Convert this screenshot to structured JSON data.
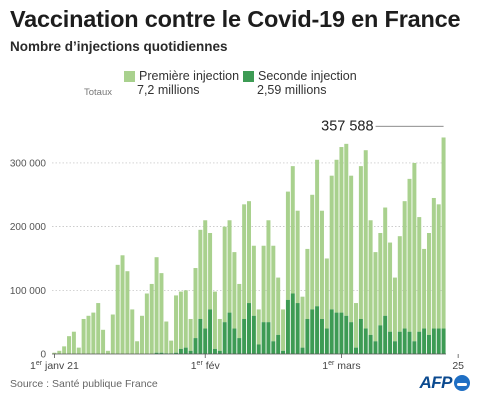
{
  "chart_data": {
    "type": "bar",
    "title": "Vaccination contre le Covid-19 en France",
    "subtitle": "Nombre d’injections quotidiennes",
    "stacked": true,
    "series": [
      {
        "name": "Première injection",
        "color": "#a9d18e",
        "total": "7,2 millions",
        "values": [
          2000,
          5000,
          12000,
          28000,
          35000,
          10000,
          55000,
          60000,
          65000,
          80000,
          38000,
          5000,
          62000,
          140000,
          155000,
          130000,
          70000,
          20000,
          60000,
          95000,
          110000,
          150000,
          125000,
          50000,
          20000,
          90000,
          90000,
          90000,
          50000,
          110000,
          140000,
          170000,
          120000,
          90000,
          50000,
          150000,
          145000,
          120000,
          85000,
          180000,
          160000,
          110000,
          55000,
          120000,
          160000,
          150000,
          90000,
          65000,
          170000,
          200000,
          145000,
          80000,
          110000,
          180000,
          230000,
          170000,
          110000,
          210000,
          240000,
          260000,
          270000,
          230000,
          70000,
          240000,
          280000,
          180000,
          140000,
          145000,
          170000,
          140000,
          100000,
          150000,
          200000,
          240000,
          280000,
          180000,
          125000,
          160000,
          205000,
          195000,
          300000
        ]
      },
      {
        "name": "Seconde injection",
        "color": "#3d9b54",
        "total": "2,59 millions",
        "values": [
          0,
          0,
          0,
          0,
          0,
          0,
          0,
          0,
          0,
          0,
          0,
          0,
          0,
          0,
          0,
          0,
          0,
          0,
          0,
          0,
          0,
          2000,
          2000,
          1000,
          1000,
          2000,
          8000,
          10000,
          5000,
          25000,
          55000,
          40000,
          70000,
          8000,
          5000,
          50000,
          65000,
          40000,
          25000,
          55000,
          80000,
          60000,
          15000,
          50000,
          50000,
          20000,
          30000,
          5000,
          85000,
          95000,
          80000,
          10000,
          55000,
          70000,
          75000,
          55000,
          40000,
          70000,
          65000,
          65000,
          60000,
          50000,
          10000,
          55000,
          40000,
          30000,
          20000,
          45000,
          60000,
          35000,
          20000,
          35000,
          40000,
          35000,
          20000,
          35000,
          40000,
          30000,
          40000,
          40000,
          40000
        ]
      }
    ],
    "annotation": {
      "label": "357 588",
      "value": 357588
    },
    "yticks": [
      {
        "value": 0,
        "label": "0"
      },
      {
        "value": 100000,
        "label": "100 000"
      },
      {
        "value": 200000,
        "label": "200 000"
      },
      {
        "value": 300000,
        "label": "300 000"
      }
    ],
    "ylim": [
      0,
      380000
    ],
    "xticks": [
      {
        "index": 0,
        "pre": "1",
        "sup": "er",
        "post": " janv 21"
      },
      {
        "index": 31,
        "pre": "1",
        "sup": "er",
        "post": " fév"
      },
      {
        "index": 59,
        "pre": "1",
        "sup": "er",
        "post": " mars"
      },
      {
        "index": 83,
        "pre": "25",
        "sup": "",
        "post": ""
      }
    ],
    "xlabel": "",
    "ylabel": "",
    "grid": true,
    "legend": "top"
  },
  "legend": {
    "totals_label": "Totaux"
  },
  "source": "Source : Santé publique France",
  "brand": "AFP"
}
